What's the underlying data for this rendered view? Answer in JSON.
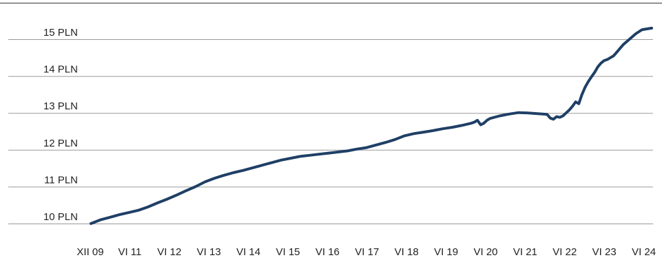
{
  "chart_data": {
    "type": "line",
    "title": "",
    "xlabel": "",
    "ylabel": "",
    "ylim": [
      10,
      15
    ],
    "yticks": [
      {
        "value": 10,
        "label": "10  PLN"
      },
      {
        "value": 11,
        "label": "11  PLN"
      },
      {
        "value": 12,
        "label": "12  PLN"
      },
      {
        "value": 13,
        "label": "13  PLN"
      },
      {
        "value": 14,
        "label": "14  PLN"
      },
      {
        "value": 15,
        "label": "15  PLN"
      }
    ],
    "xticks": [
      "XII 09",
      "VI 11",
      "VI 12",
      "VI 13",
      "VI 14",
      "VI 15",
      "VI 16",
      "VI 17",
      "VI 18",
      "VI 19",
      "VI 20",
      "VI 21",
      "VI 22",
      "VI 23",
      "VI 24"
    ],
    "xlim": [
      "2009-12",
      "2024-09"
    ],
    "grid": true,
    "legend": "none",
    "colors": {
      "line": "#1f3f66",
      "grid": "#9a9a9a",
      "topRule": "#333333"
    },
    "series": [
      {
        "x": [
          "2009-12",
          "2010-03",
          "2010-06",
          "2010-09",
          "2010-12",
          "2011-03",
          "2011-06",
          "2011-09",
          "2011-12",
          "2012-03",
          "2012-06",
          "2012-09",
          "2012-12",
          "2013-03",
          "2013-06",
          "2013-09",
          "2013-12",
          "2014-03",
          "2014-06",
          "2014-09",
          "2014-12",
          "2015-03",
          "2015-06",
          "2015-09",
          "2015-12",
          "2016-03",
          "2016-06",
          "2016-09",
          "2016-12",
          "2017-03",
          "2017-06",
          "2017-09",
          "2017-12",
          "2018-03",
          "2018-06",
          "2018-09",
          "2018-12",
          "2019-03",
          "2019-06",
          "2019-09",
          "2019-12",
          "2020-01",
          "2020-02",
          "2020-03",
          "2020-04",
          "2020-05",
          "2020-06",
          "2020-09",
          "2020-12",
          "2021-03",
          "2021-06",
          "2021-09",
          "2021-12",
          "2022-01",
          "2022-02",
          "2022-03",
          "2022-04",
          "2022-05",
          "2022-06",
          "2022-07",
          "2022-08",
          "2022-09",
          "2022-10",
          "2022-11",
          "2022-12",
          "2023-01",
          "2023-02",
          "2023-03",
          "2023-04",
          "2023-05",
          "2023-06",
          "2023-07",
          "2023-08",
          "2023-09",
          "2023-10",
          "2023-12",
          "2024-02",
          "2024-04",
          "2024-06",
          "2024-09"
        ],
        "values": [
          10.0,
          10.1,
          10.17,
          10.24,
          10.3,
          10.36,
          10.45,
          10.56,
          10.66,
          10.77,
          10.89,
          11.0,
          11.13,
          11.23,
          11.31,
          11.38,
          11.44,
          11.51,
          11.58,
          11.65,
          11.72,
          11.77,
          11.82,
          11.85,
          11.88,
          11.91,
          11.94,
          11.97,
          12.02,
          12.06,
          12.13,
          12.2,
          12.28,
          12.38,
          12.44,
          12.48,
          12.52,
          12.57,
          12.61,
          12.66,
          12.72,
          12.75,
          12.8,
          12.68,
          12.72,
          12.8,
          12.85,
          12.92,
          12.97,
          13.01,
          13.0,
          12.98,
          12.96,
          12.86,
          12.83,
          12.9,
          12.88,
          12.92,
          13.0,
          13.08,
          13.18,
          13.3,
          13.25,
          13.5,
          13.7,
          13.85,
          13.98,
          14.1,
          14.25,
          14.35,
          14.42,
          14.45,
          14.5,
          14.55,
          14.65,
          14.85,
          15.0,
          15.15,
          15.26,
          15.3
        ]
      }
    ]
  }
}
